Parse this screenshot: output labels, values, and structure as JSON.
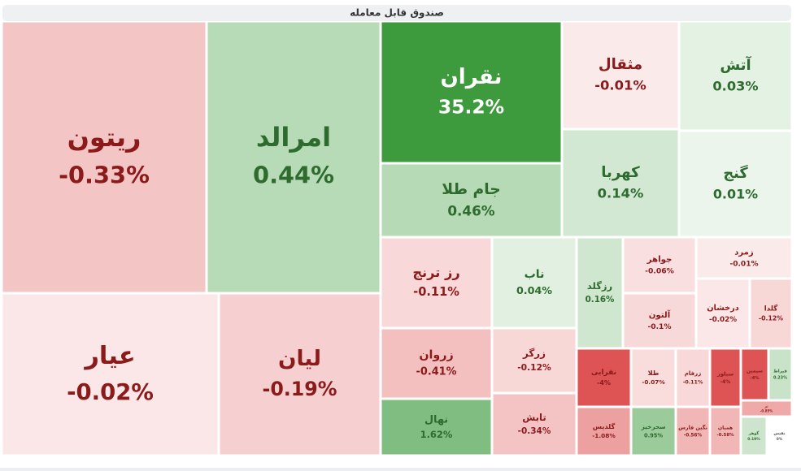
{
  "chart_data": {
    "type": "treemap",
    "title": "صندوق قابل معامله",
    "categories": [
      "ریتون",
      "امرالد",
      "عیار",
      "لیان",
      "نقران",
      "جام طلا",
      "مثقال",
      "آتش",
      "کهربا",
      "گنج",
      "رز ترنج",
      "ناب",
      "زروان",
      "زرگر",
      "تابش",
      "نهال",
      "رزگلد",
      "جواهر",
      "آلتون",
      "زمرد",
      "درخشان",
      "گلدا",
      "نقرابی",
      "طلا",
      "زرفام",
      "سیلور",
      "سیمین",
      "قیراط",
      "تر",
      "گلدیس",
      "سحرخیز",
      "نگین فارس",
      "همیان",
      "گوهر",
      "نفیس"
    ],
    "values": [
      -0.33,
      0.44,
      -0.02,
      -0.19,
      35.2,
      0.46,
      -0.01,
      0.03,
      0.14,
      0.01,
      -0.11,
      0.04,
      -0.41,
      -0.12,
      -0.34,
      1.62,
      0.16,
      -0.06,
      -0.1,
      -0.01,
      -0.02,
      -0.12,
      -4,
      -0.07,
      -0.11,
      -4,
      -4,
      0.23,
      -0.85,
      -1.08,
      0.95,
      -0.56,
      -0.58,
      0.19,
      0
    ],
    "value_labels": [
      "-0.33%",
      "0.44%",
      "-0.02%",
      "-0.19%",
      "35.2%",
      "0.46%",
      "-0.01%",
      "0.03%",
      "0.14%",
      "0.01%",
      "-0.11%",
      "0.04%",
      "-0.41%",
      "-0.12%",
      "-0.34%",
      "1.62%",
      "0.16%",
      "-0.06%",
      "-0.1%",
      "-0.01%",
      "-0.02%",
      "-0.12%",
      "-4%",
      "-0.07%",
      "-0.11%",
      "-4%",
      "-4%",
      "0.23%",
      "-0.85%",
      "-1.08%",
      "0.95%",
      "-0.56%",
      "-0.58%",
      "0.19%",
      "0%"
    ]
  }
}
